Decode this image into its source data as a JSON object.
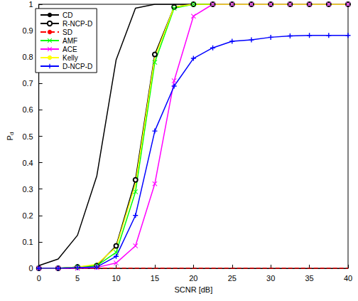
{
  "chart_data": {
    "type": "line",
    "x_label": "SCNR [dB]",
    "y_label": "Pd",
    "x": [
      0,
      2.5,
      5,
      7.5,
      10,
      12.5,
      15,
      17.5,
      20,
      22.5,
      25,
      27.5,
      30,
      32.5,
      35,
      37.5,
      40
    ],
    "xlim": [
      0,
      40
    ],
    "xticks": [
      0,
      5,
      10,
      15,
      20,
      25,
      30,
      35,
      40
    ],
    "ylim": [
      0,
      1
    ],
    "yticks": [
      0,
      0.1,
      0.2,
      0.3,
      0.4,
      0.5,
      0.6,
      0.7,
      0.8,
      0.9,
      1
    ],
    "grid": false,
    "legend": "top-left",
    "series": [
      {
        "name": "CD",
        "color": "#000000",
        "marker": "none",
        "line_style": "solid",
        "values": [
          0.01,
          0.035,
          0.125,
          0.35,
          0.79,
          0.985,
          1,
          1,
          1,
          1,
          1,
          1,
          1,
          1,
          1,
          1,
          1
        ]
      },
      {
        "name": "R-NCP-D",
        "color": "#000000",
        "marker": "circle",
        "line_style": "solid",
        "values": [
          0,
          0,
          0.005,
          0.01,
          0.085,
          0.335,
          0.81,
          0.99,
          1,
          1,
          1,
          1,
          1,
          1,
          1,
          1,
          1
        ]
      },
      {
        "name": "SD",
        "color": "#ff0000",
        "marker": "none",
        "line_style": "dashed",
        "values": [
          0,
          0,
          0,
          0,
          0,
          0,
          0,
          0,
          0,
          0,
          0,
          0,
          0,
          0,
          0,
          0,
          0
        ]
      },
      {
        "name": "AMF",
        "color": "#00ff00",
        "marker": "x",
        "line_style": "solid",
        "values": [
          0,
          0,
          0.005,
          0.01,
          0.06,
          0.29,
          0.78,
          0.985,
          1,
          1,
          1,
          1,
          1,
          1,
          1,
          1,
          1
        ]
      },
      {
        "name": "ACE",
        "color": "#ff00ff",
        "marker": "x",
        "line_style": "solid",
        "values": [
          0,
          0,
          0,
          0.003,
          0.02,
          0.085,
          0.32,
          0.71,
          0.955,
          1,
          1,
          1,
          1,
          1,
          1,
          1,
          1
        ]
      },
      {
        "name": "Kelly",
        "color": "#ffff00",
        "marker": "none",
        "line_style": "solid",
        "values": [
          0,
          0,
          0.005,
          0.015,
          0.08,
          0.32,
          0.8,
          0.99,
          1,
          1,
          1,
          1,
          1,
          1,
          1,
          1,
          1
        ]
      },
      {
        "name": "D-NCP-D",
        "color": "#0000ff",
        "marker": "plus",
        "line_style": "solid",
        "values": [
          0,
          0,
          0.003,
          0.005,
          0.045,
          0.2,
          0.52,
          0.69,
          0.795,
          0.835,
          0.86,
          0.865,
          0.875,
          0.88,
          0.882,
          0.882,
          0.882
        ]
      }
    ]
  }
}
